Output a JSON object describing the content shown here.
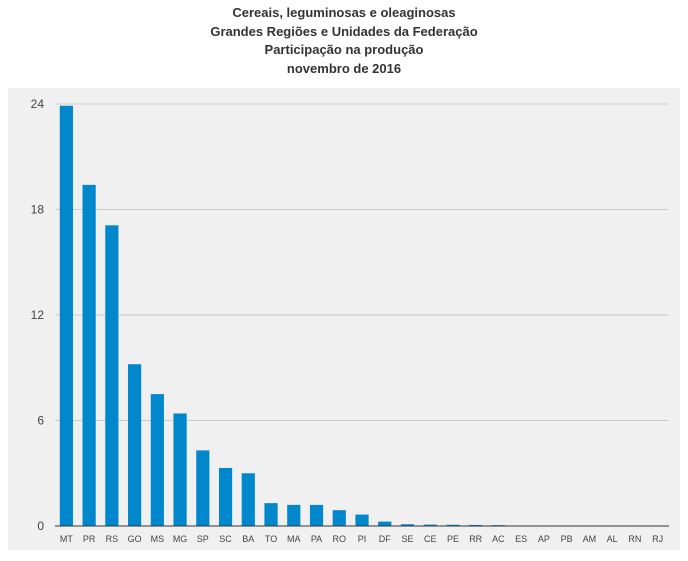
{
  "chart_data": {
    "type": "bar",
    "title_lines": [
      "Cereais, leguminosas e oleaginosas",
      "Grandes Regiões e Unidades da Federação",
      "Participação na produção",
      "novembro de 2016"
    ],
    "categories": [
      "MT",
      "PR",
      "RS",
      "GO",
      "MS",
      "MG",
      "SP",
      "SC",
      "BA",
      "TO",
      "MA",
      "PA",
      "RO",
      "PI",
      "DF",
      "SE",
      "CE",
      "PE",
      "RR",
      "AC",
      "ES",
      "AP",
      "PB",
      "AM",
      "AL",
      "RN",
      "RJ"
    ],
    "values": [
      23.9,
      19.4,
      17.1,
      9.2,
      7.5,
      6.4,
      4.3,
      3.3,
      3.0,
      1.3,
      1.2,
      1.2,
      0.9,
      0.65,
      0.25,
      0.1,
      0.08,
      0.07,
      0.06,
      0.05,
      0.02,
      0.01,
      0.01,
      0.01,
      0.01,
      0.01,
      0.01
    ],
    "ylim": [
      0,
      24
    ],
    "yticks": [
      0,
      6,
      12,
      18,
      24
    ],
    "xlabel": "",
    "ylabel": "",
    "grid": true,
    "colors": {
      "bar": "#0087cc",
      "plot_bg": "#f0f0f0",
      "grid": "#cccccc",
      "axis": "#333333"
    }
  }
}
